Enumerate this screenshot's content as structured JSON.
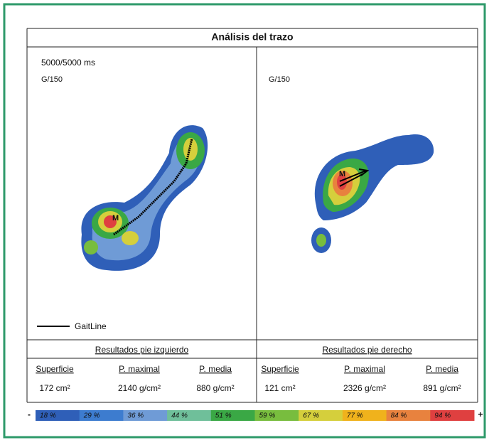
{
  "title": "Análisis del trazo",
  "left_panel": {
    "time": "5000/5000 ms",
    "gain": "G/150",
    "marker": "M"
  },
  "right_panel": {
    "gain": "G/150",
    "marker": "M"
  },
  "legend": {
    "line": "GaitLine"
  },
  "results": [
    {
      "heading": "Resultados pie izquierdo",
      "columns": [
        "Superficie",
        "P. maximal",
        "P. media"
      ],
      "values": [
        "172 cm²",
        "2140 g/cm²",
        "880 g/cm²"
      ]
    },
    {
      "heading": "Resultados pie derecho",
      "columns": [
        "Superficie",
        "P. maximal",
        "P. media"
      ],
      "values": [
        "121 cm²",
        "2326 g/cm²",
        "891 g/cm²"
      ]
    }
  ],
  "scale": {
    "min": "-",
    "max": "+",
    "steps": [
      {
        "label": "18 %",
        "color": "#2f5fb8"
      },
      {
        "label": "29 %",
        "color": "#3d7ccf"
      },
      {
        "label": "36 %",
        "color": "#6f9bd6"
      },
      {
        "label": "44 %",
        "color": "#6fbf9a"
      },
      {
        "label": "51 %",
        "color": "#3aa845"
      },
      {
        "label": "59 %",
        "color": "#78bd3e"
      },
      {
        "label": "67 %",
        "color": "#d5cf3c"
      },
      {
        "label": "77 %",
        "color": "#f0b21c"
      },
      {
        "label": "84 %",
        "color": "#e8823e"
      },
      {
        "label": "94 %",
        "color": "#df4040"
      }
    ]
  }
}
